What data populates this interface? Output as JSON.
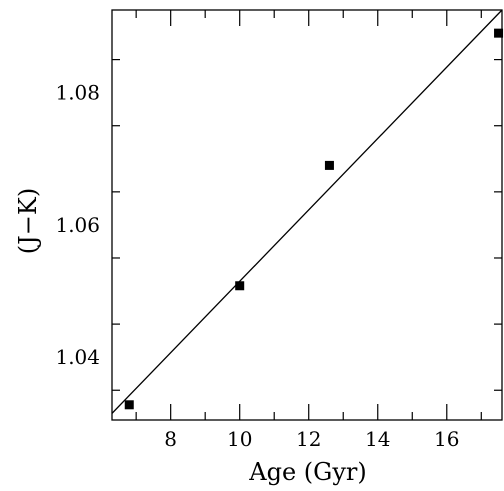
{
  "chart_data": {
    "type": "scatter",
    "title": "",
    "xlabel": "Age (Gyr)",
    "ylabel": "(J−K)",
    "xlim": [
      6.3,
      17.6
    ],
    "ylim": [
      1.0305,
      1.0925
    ],
    "x_ticks_major": [
      8,
      10,
      12,
      14,
      16
    ],
    "x_tick_labels": [
      "8",
      "10",
      "12",
      "14",
      "16"
    ],
    "y_ticks_major": [
      1.04,
      1.06,
      1.08
    ],
    "y_tick_labels": [
      "1.04",
      "1.06",
      "1.08"
    ],
    "grid": false,
    "legend": "none",
    "series": [
      {
        "kind": "points",
        "marker": "filled-square",
        "x": [
          6.8,
          10.0,
          12.6,
          17.5
        ],
        "y": [
          1.0328,
          1.0508,
          1.069,
          1.089
        ]
      },
      {
        "kind": "fit-line",
        "x": [
          6.3,
          17.6
        ],
        "y": [
          1.0315,
          1.0925
        ]
      }
    ],
    "colors": {
      "axes": "#000000",
      "marker": "#000000",
      "line": "#000000"
    }
  }
}
